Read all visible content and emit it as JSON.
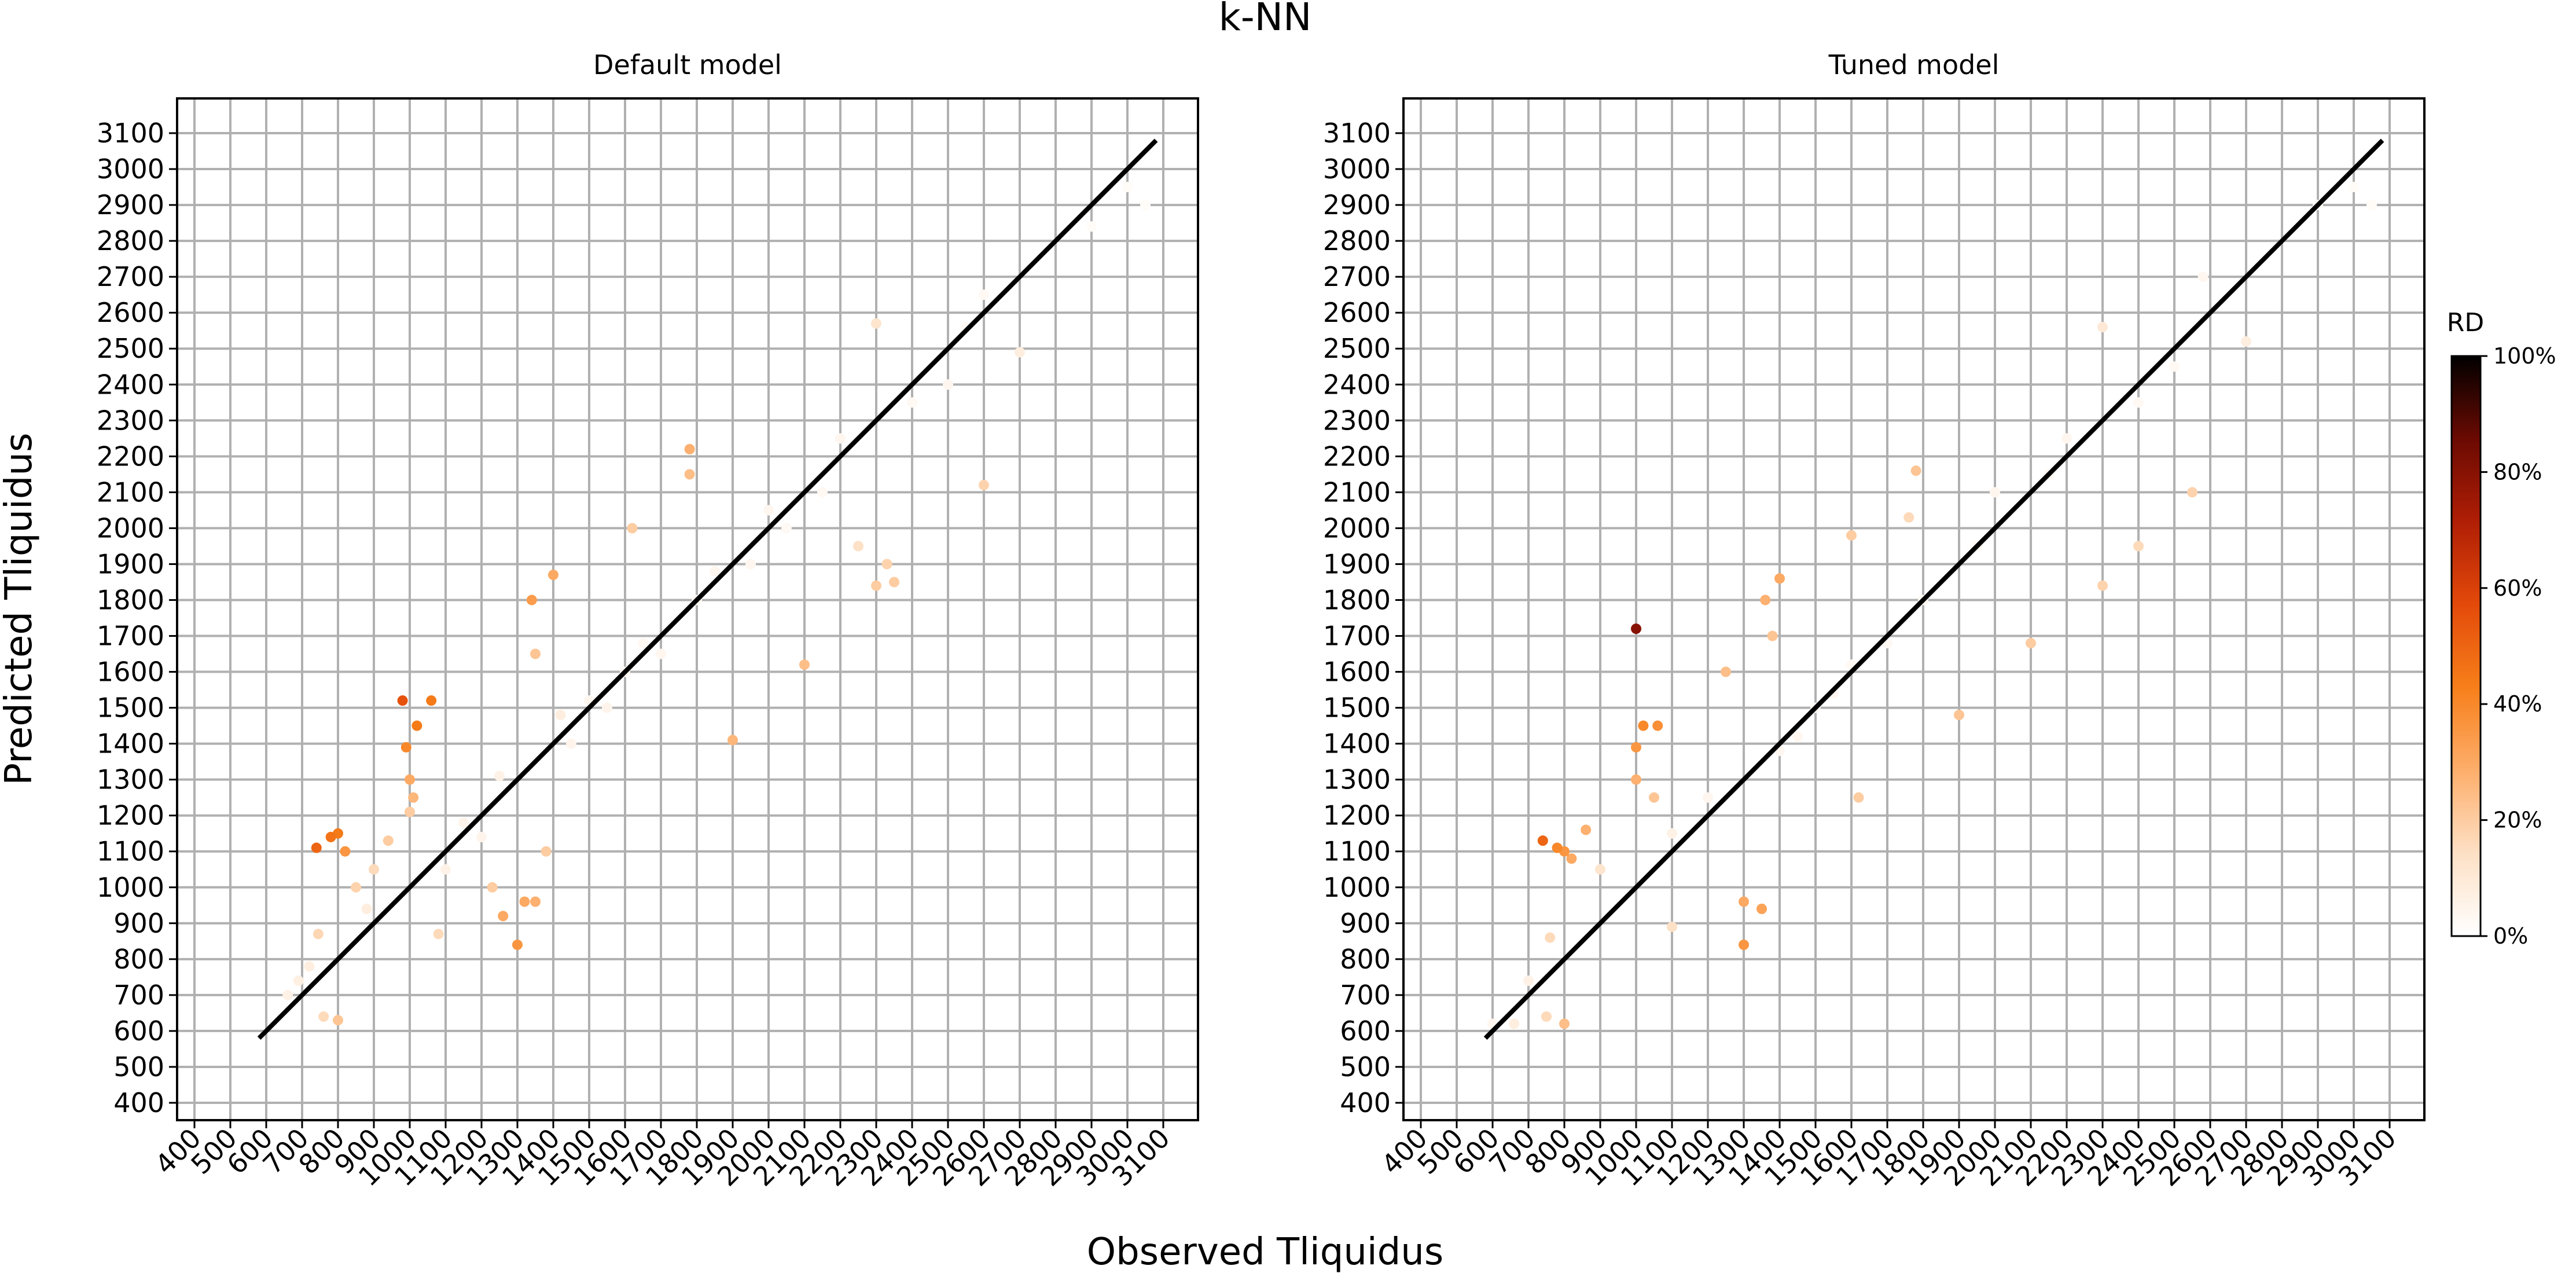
{
  "figure": {
    "title": "k-NN",
    "xlabel": "Observed Tliquidus",
    "ylabel": "Predicted Tliquidus"
  },
  "colorbar": {
    "label": "RD",
    "ticks": [
      "0%",
      "20%",
      "40%",
      "60%",
      "80%",
      "100%"
    ],
    "range": [
      0,
      100
    ],
    "colormap": "Oranges-to-black",
    "stops": [
      "#ffffff",
      "#fde0c5",
      "#fdae6b",
      "#f77f1a",
      "#e34a0a",
      "#b01e05",
      "#6b0a02",
      "#000000"
    ]
  },
  "chart_data": [
    {
      "type": "scatter",
      "title": "Default model",
      "xlabel": "",
      "ylabel": "",
      "xlim": [
        400,
        3100
      ],
      "ylim": [
        400,
        3100
      ],
      "ticks": [
        400,
        500,
        600,
        700,
        800,
        900,
        1000,
        1100,
        1200,
        1300,
        1400,
        1500,
        1600,
        1700,
        1800,
        1900,
        2000,
        2100,
        2200,
        2300,
        2400,
        2500,
        2600,
        2700,
        2800,
        2900,
        3000,
        3100
      ],
      "grid": true,
      "reference_line": {
        "x": [
          580,
          3080
        ],
        "y": [
          580,
          3080
        ]
      },
      "points": [
        {
          "x": 660,
          "y": 700,
          "rd": 6
        },
        {
          "x": 690,
          "y": 740,
          "rd": 7
        },
        {
          "x": 720,
          "y": 780,
          "rd": 8
        },
        {
          "x": 745,
          "y": 870,
          "rd": 17
        },
        {
          "x": 760,
          "y": 640,
          "rd": 16
        },
        {
          "x": 800,
          "y": 630,
          "rd": 22
        },
        {
          "x": 740,
          "y": 1110,
          "rd": 50
        },
        {
          "x": 780,
          "y": 1140,
          "rd": 46
        },
        {
          "x": 800,
          "y": 1150,
          "rd": 44
        },
        {
          "x": 820,
          "y": 1100,
          "rd": 36
        },
        {
          "x": 850,
          "y": 1000,
          "rd": 18
        },
        {
          "x": 880,
          "y": 940,
          "rd": 8
        },
        {
          "x": 900,
          "y": 1050,
          "rd": 16
        },
        {
          "x": 940,
          "y": 1130,
          "rd": 20
        },
        {
          "x": 980,
          "y": 1520,
          "rd": 55
        },
        {
          "x": 1020,
          "y": 1450,
          "rd": 44
        },
        {
          "x": 1060,
          "y": 1520,
          "rd": 44
        },
        {
          "x": 990,
          "y": 1390,
          "rd": 40
        },
        {
          "x": 1000,
          "y": 1300,
          "rd": 30
        },
        {
          "x": 1010,
          "y": 1250,
          "rd": 26
        },
        {
          "x": 1000,
          "y": 1210,
          "rd": 20
        },
        {
          "x": 1080,
          "y": 870,
          "rd": 16
        },
        {
          "x": 1100,
          "y": 1050,
          "rd": 6
        },
        {
          "x": 1150,
          "y": 1180,
          "rd": 5
        },
        {
          "x": 1200,
          "y": 1140,
          "rd": 5
        },
        {
          "x": 1250,
          "y": 1310,
          "rd": 6
        },
        {
          "x": 1230,
          "y": 1000,
          "rd": 20
        },
        {
          "x": 1260,
          "y": 920,
          "rd": 30
        },
        {
          "x": 1300,
          "y": 840,
          "rd": 36
        },
        {
          "x": 1320,
          "y": 960,
          "rd": 30
        },
        {
          "x": 1350,
          "y": 960,
          "rd": 28
        },
        {
          "x": 1380,
          "y": 1100,
          "rd": 20
        },
        {
          "x": 1340,
          "y": 1800,
          "rd": 34
        },
        {
          "x": 1400,
          "y": 1870,
          "rd": 30
        },
        {
          "x": 1350,
          "y": 1650,
          "rd": 22
        },
        {
          "x": 1420,
          "y": 1480,
          "rd": 8
        },
        {
          "x": 1450,
          "y": 1400,
          "rd": 5
        },
        {
          "x": 1500,
          "y": 1520,
          "rd": 4
        },
        {
          "x": 1550,
          "y": 1500,
          "rd": 5
        },
        {
          "x": 1600,
          "y": 1600,
          "rd": 3
        },
        {
          "x": 1650,
          "y": 1680,
          "rd": 3
        },
        {
          "x": 1700,
          "y": 1650,
          "rd": 4
        },
        {
          "x": 1620,
          "y": 2000,
          "rd": 20
        },
        {
          "x": 1780,
          "y": 2220,
          "rd": 28
        },
        {
          "x": 1780,
          "y": 2150,
          "rd": 24
        },
        {
          "x": 1800,
          "y": 1800,
          "rd": 3
        },
        {
          "x": 1850,
          "y": 1880,
          "rd": 4
        },
        {
          "x": 1900,
          "y": 1410,
          "rd": 26
        },
        {
          "x": 1950,
          "y": 1900,
          "rd": 4
        },
        {
          "x": 2000,
          "y": 2050,
          "rd": 4
        },
        {
          "x": 2050,
          "y": 2000,
          "rd": 3
        },
        {
          "x": 2100,
          "y": 1620,
          "rd": 24
        },
        {
          "x": 2150,
          "y": 2100,
          "rd": 3
        },
        {
          "x": 2200,
          "y": 2250,
          "rd": 4
        },
        {
          "x": 2250,
          "y": 1950,
          "rd": 14
        },
        {
          "x": 2300,
          "y": 1840,
          "rd": 20
        },
        {
          "x": 2330,
          "y": 1900,
          "rd": 18
        },
        {
          "x": 2350,
          "y": 1850,
          "rd": 20
        },
        {
          "x": 2300,
          "y": 2570,
          "rd": 12
        },
        {
          "x": 2400,
          "y": 2350,
          "rd": 3
        },
        {
          "x": 2500,
          "y": 2400,
          "rd": 4
        },
        {
          "x": 2550,
          "y": 2560,
          "rd": 3
        },
        {
          "x": 2600,
          "y": 2120,
          "rd": 18
        },
        {
          "x": 2600,
          "y": 2650,
          "rd": 3
        },
        {
          "x": 2700,
          "y": 2490,
          "rd": 8
        },
        {
          "x": 2900,
          "y": 2840,
          "rd": 2
        },
        {
          "x": 3000,
          "y": 2950,
          "rd": 2
        },
        {
          "x": 3050,
          "y": 2900,
          "rd": 2
        }
      ]
    },
    {
      "type": "scatter",
      "title": "Tuned model",
      "xlabel": "",
      "ylabel": "",
      "xlim": [
        400,
        3100
      ],
      "ylim": [
        400,
        3100
      ],
      "ticks": [
        400,
        500,
        600,
        700,
        800,
        900,
        1000,
        1100,
        1200,
        1300,
        1400,
        1500,
        1600,
        1700,
        1800,
        1900,
        2000,
        2100,
        2200,
        2300,
        2400,
        2500,
        2600,
        2700,
        2800,
        2900,
        3000,
        3100
      ],
      "grid": true,
      "reference_line": {
        "x": [
          580,
          3080
        ],
        "y": [
          580,
          3080
        ]
      },
      "points": [
        {
          "x": 600,
          "y": 620,
          "rd": 4
        },
        {
          "x": 660,
          "y": 620,
          "rd": 8
        },
        {
          "x": 700,
          "y": 740,
          "rd": 6
        },
        {
          "x": 750,
          "y": 640,
          "rd": 16
        },
        {
          "x": 800,
          "y": 620,
          "rd": 24
        },
        {
          "x": 740,
          "y": 1130,
          "rd": 50
        },
        {
          "x": 780,
          "y": 1110,
          "rd": 40
        },
        {
          "x": 800,
          "y": 1100,
          "rd": 36
        },
        {
          "x": 820,
          "y": 1080,
          "rd": 30
        },
        {
          "x": 860,
          "y": 1160,
          "rd": 28
        },
        {
          "x": 760,
          "y": 860,
          "rd": 16
        },
        {
          "x": 900,
          "y": 1050,
          "rd": 12
        },
        {
          "x": 1000,
          "y": 1720,
          "rd": 80
        },
        {
          "x": 1020,
          "y": 1450,
          "rd": 40
        },
        {
          "x": 1060,
          "y": 1450,
          "rd": 38
        },
        {
          "x": 1000,
          "y": 1390,
          "rd": 36
        },
        {
          "x": 1000,
          "y": 1300,
          "rd": 28
        },
        {
          "x": 1050,
          "y": 1250,
          "rd": 22
        },
        {
          "x": 1100,
          "y": 1150,
          "rd": 6
        },
        {
          "x": 1100,
          "y": 890,
          "rd": 14
        },
        {
          "x": 1200,
          "y": 1250,
          "rd": 4
        },
        {
          "x": 1250,
          "y": 1600,
          "rd": 24
        },
        {
          "x": 1300,
          "y": 960,
          "rd": 30
        },
        {
          "x": 1300,
          "y": 840,
          "rd": 36
        },
        {
          "x": 1350,
          "y": 940,
          "rd": 32
        },
        {
          "x": 1360,
          "y": 1800,
          "rd": 28
        },
        {
          "x": 1400,
          "y": 1860,
          "rd": 30
        },
        {
          "x": 1380,
          "y": 1700,
          "rd": 22
        },
        {
          "x": 1400,
          "y": 1380,
          "rd": 4
        },
        {
          "x": 1450,
          "y": 1420,
          "rd": 4
        },
        {
          "x": 1500,
          "y": 1500,
          "rd": 3
        },
        {
          "x": 1550,
          "y": 1540,
          "rd": 4
        },
        {
          "x": 1600,
          "y": 1980,
          "rd": 20
        },
        {
          "x": 1620,
          "y": 1250,
          "rd": 20
        },
        {
          "x": 1600,
          "y": 1620,
          "rd": 3
        },
        {
          "x": 1700,
          "y": 1680,
          "rd": 3
        },
        {
          "x": 1780,
          "y": 2160,
          "rd": 22
        },
        {
          "x": 1760,
          "y": 2030,
          "rd": 16
        },
        {
          "x": 1800,
          "y": 1800,
          "rd": 3
        },
        {
          "x": 1900,
          "y": 1480,
          "rd": 22
        },
        {
          "x": 1950,
          "y": 1950,
          "rd": 3
        },
        {
          "x": 2000,
          "y": 2100,
          "rd": 4
        },
        {
          "x": 2100,
          "y": 1680,
          "rd": 20
        },
        {
          "x": 2150,
          "y": 2150,
          "rd": 3
        },
        {
          "x": 2200,
          "y": 2250,
          "rd": 4
        },
        {
          "x": 2300,
          "y": 1840,
          "rd": 18
        },
        {
          "x": 2300,
          "y": 2560,
          "rd": 10
        },
        {
          "x": 2400,
          "y": 1950,
          "rd": 16
        },
        {
          "x": 2400,
          "y": 2350,
          "rd": 3
        },
        {
          "x": 2500,
          "y": 2450,
          "rd": 3
        },
        {
          "x": 2550,
          "y": 2100,
          "rd": 18
        },
        {
          "x": 2580,
          "y": 2700,
          "rd": 4
        },
        {
          "x": 2700,
          "y": 2520,
          "rd": 8
        },
        {
          "x": 2900,
          "y": 2900,
          "rd": 2
        },
        {
          "x": 3000,
          "y": 2950,
          "rd": 2
        },
        {
          "x": 3050,
          "y": 2900,
          "rd": 2
        }
      ]
    }
  ]
}
